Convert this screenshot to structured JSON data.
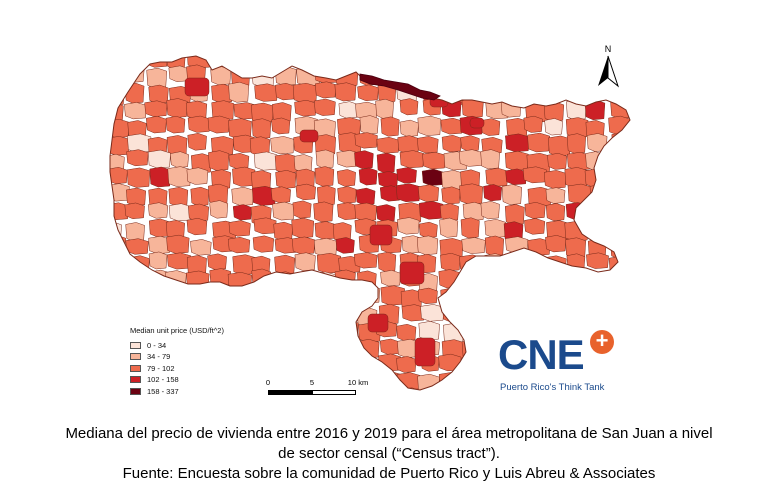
{
  "legend": {
    "title": "Median unit price (USD/ft^2)",
    "classes": [
      {
        "label": "0 - 34",
        "color": "#fbe3d8"
      },
      {
        "label": "34 - 79",
        "color": "#f7b59a"
      },
      {
        "label": "79 - 102",
        "color": "#ee6b4d"
      },
      {
        "label": "102 - 158",
        "color": "#cc2026"
      },
      {
        "label": "158 - 337",
        "color": "#6b0212"
      }
    ]
  },
  "scalebar": {
    "labels": [
      "0",
      "5",
      "10 km"
    ]
  },
  "north_arrow": {
    "letter": "N"
  },
  "logo": {
    "text": "CNE",
    "plus": "+",
    "tagline": "Puerto Rico's Think Tank"
  },
  "caption": {
    "line1": "Mediana del precio de vivienda entre 2016 y 2019 para el área metropolitana de San Juan a nivel",
    "line2": "de sector censal (“Census tract”).",
    "line3": "Fuente: Encuesta sobre la comunidad de Puerto Rico y Luis Abreu & Associates"
  },
  "colors": {
    "boundary": "#7a2a1a",
    "base_fill": "#ee6b4d"
  }
}
